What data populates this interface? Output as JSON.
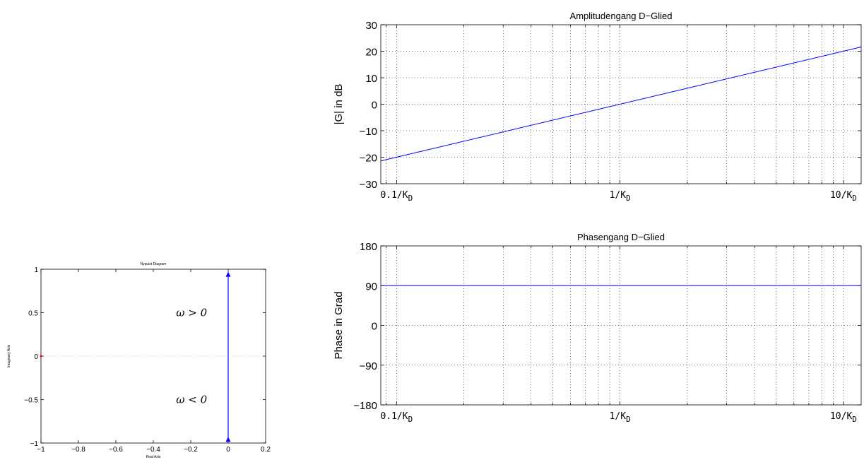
{
  "chart_data": [
    {
      "type": "line",
      "title": "Nyquist Diagram",
      "xlabel": "Real Axis",
      "ylabel": "Imaginary Axis",
      "xlim": [
        -1,
        0.2
      ],
      "ylim": [
        -1,
        1
      ],
      "xticks": [
        -1,
        -0.8,
        -0.6,
        -0.4,
        -0.2,
        0,
        0.2
      ],
      "xtick_labels": [
        "−1",
        "−0.8",
        "−0.6",
        "−0.4",
        "−0.2",
        "0",
        "0.2"
      ],
      "yticks": [
        -1,
        -0.5,
        0,
        0.5,
        1
      ],
      "ytick_labels": [
        "−1",
        "−0.5",
        "0",
        "0.5",
        "1"
      ],
      "series": [
        {
          "x": [
            0,
            0
          ],
          "y": [
            -0.95,
            0.95
          ],
          "color": "#0000ff"
        }
      ],
      "arrows": [
        {
          "x": 0,
          "y": 0.93,
          "direction": "up"
        },
        {
          "x": 0,
          "y": -0.97,
          "direction": "up"
        }
      ],
      "critical_point": {
        "x": -1,
        "y": 0,
        "color": "#ff0000"
      },
      "annotations": [
        {
          "text": "ω > 0",
          "x": -0.12,
          "y": 0.5
        },
        {
          "text": "ω < 0",
          "x": -0.12,
          "y": -0.5
        }
      ],
      "grid": false
    },
    {
      "type": "line",
      "title": "Amplitudengang D−Glied",
      "xlabel": "",
      "ylabel": "|G| in dB",
      "xscale": "log",
      "xlim": [
        0.085,
        12
      ],
      "ylim": [
        -30,
        30
      ],
      "yticks": [
        -30,
        -20,
        -10,
        0,
        10,
        20,
        30
      ],
      "ytick_labels": [
        "−30",
        "−20",
        "−10",
        "0",
        "10",
        "20",
        "30"
      ],
      "xtick_labels": [
        {
          "value": 0.1,
          "base": "0.1/K",
          "sub": "D"
        },
        {
          "value": 1,
          "base": "1/K",
          "sub": "D"
        },
        {
          "value": 10,
          "base": "10/K",
          "sub": "D"
        }
      ],
      "series": [
        {
          "x": [
            0.085,
            12
          ],
          "y": [
            -21.4,
            21.6
          ],
          "color": "#0000ff"
        }
      ],
      "grid": true
    },
    {
      "type": "line",
      "title": "Phasengang D−Glied",
      "xlabel": "",
      "ylabel": "Phase in Grad",
      "xscale": "log",
      "xlim": [
        0.085,
        12
      ],
      "ylim": [
        -180,
        180
      ],
      "yticks": [
        -180,
        -90,
        0,
        90,
        180
      ],
      "ytick_labels": [
        "−180",
        "−90",
        "0",
        "90",
        "180"
      ],
      "xtick_labels": [
        {
          "value": 0.1,
          "base": "0.1/K",
          "sub": "D"
        },
        {
          "value": 1,
          "base": "1/K",
          "sub": "D"
        },
        {
          "value": 10,
          "base": "10/K",
          "sub": "D"
        }
      ],
      "series": [
        {
          "x": [
            0.085,
            12
          ],
          "y": [
            90,
            90
          ],
          "color": "#0000ff"
        }
      ],
      "grid": true
    }
  ]
}
